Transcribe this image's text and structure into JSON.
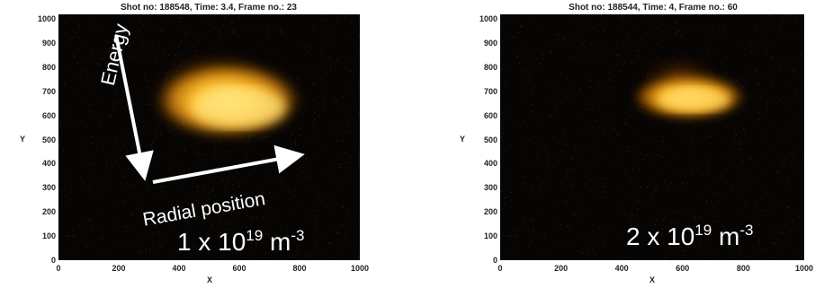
{
  "panels": [
    {
      "title": "Shot no: 188548, Time: 3.4, Frame no.: 23",
      "xlabel": "X",
      "ylabel": "Y",
      "xticks": [
        "0",
        "200",
        "400",
        "600",
        "800",
        "1000"
      ],
      "yticks": [
        "0",
        "100",
        "200",
        "300",
        "400",
        "500",
        "600",
        "700",
        "800",
        "900",
        "1000"
      ],
      "density": {
        "base": "1 x 10",
        "exp": "19",
        "unit": " m",
        "unit_exp": "-3"
      },
      "annotations": {
        "energy": "Energy",
        "radial": "Radial position"
      }
    },
    {
      "title": "Shot no: 188544, Time: 4, Frame no.: 60",
      "xlabel": "X",
      "ylabel": "Y",
      "xticks": [
        "0",
        "200",
        "400",
        "600",
        "800",
        "1000"
      ],
      "yticks": [
        "0",
        "100",
        "200",
        "300",
        "400",
        "500",
        "600",
        "700",
        "800",
        "900",
        "1000"
      ],
      "density": {
        "base": "2 x 10",
        "exp": "19",
        "unit": " m",
        "unit_exp": "-3"
      }
    }
  ],
  "colors": {
    "background": "#070503",
    "glow_core": "#ffe070",
    "glow_edge": "#c06a00",
    "annotation": "#ffffff"
  }
}
